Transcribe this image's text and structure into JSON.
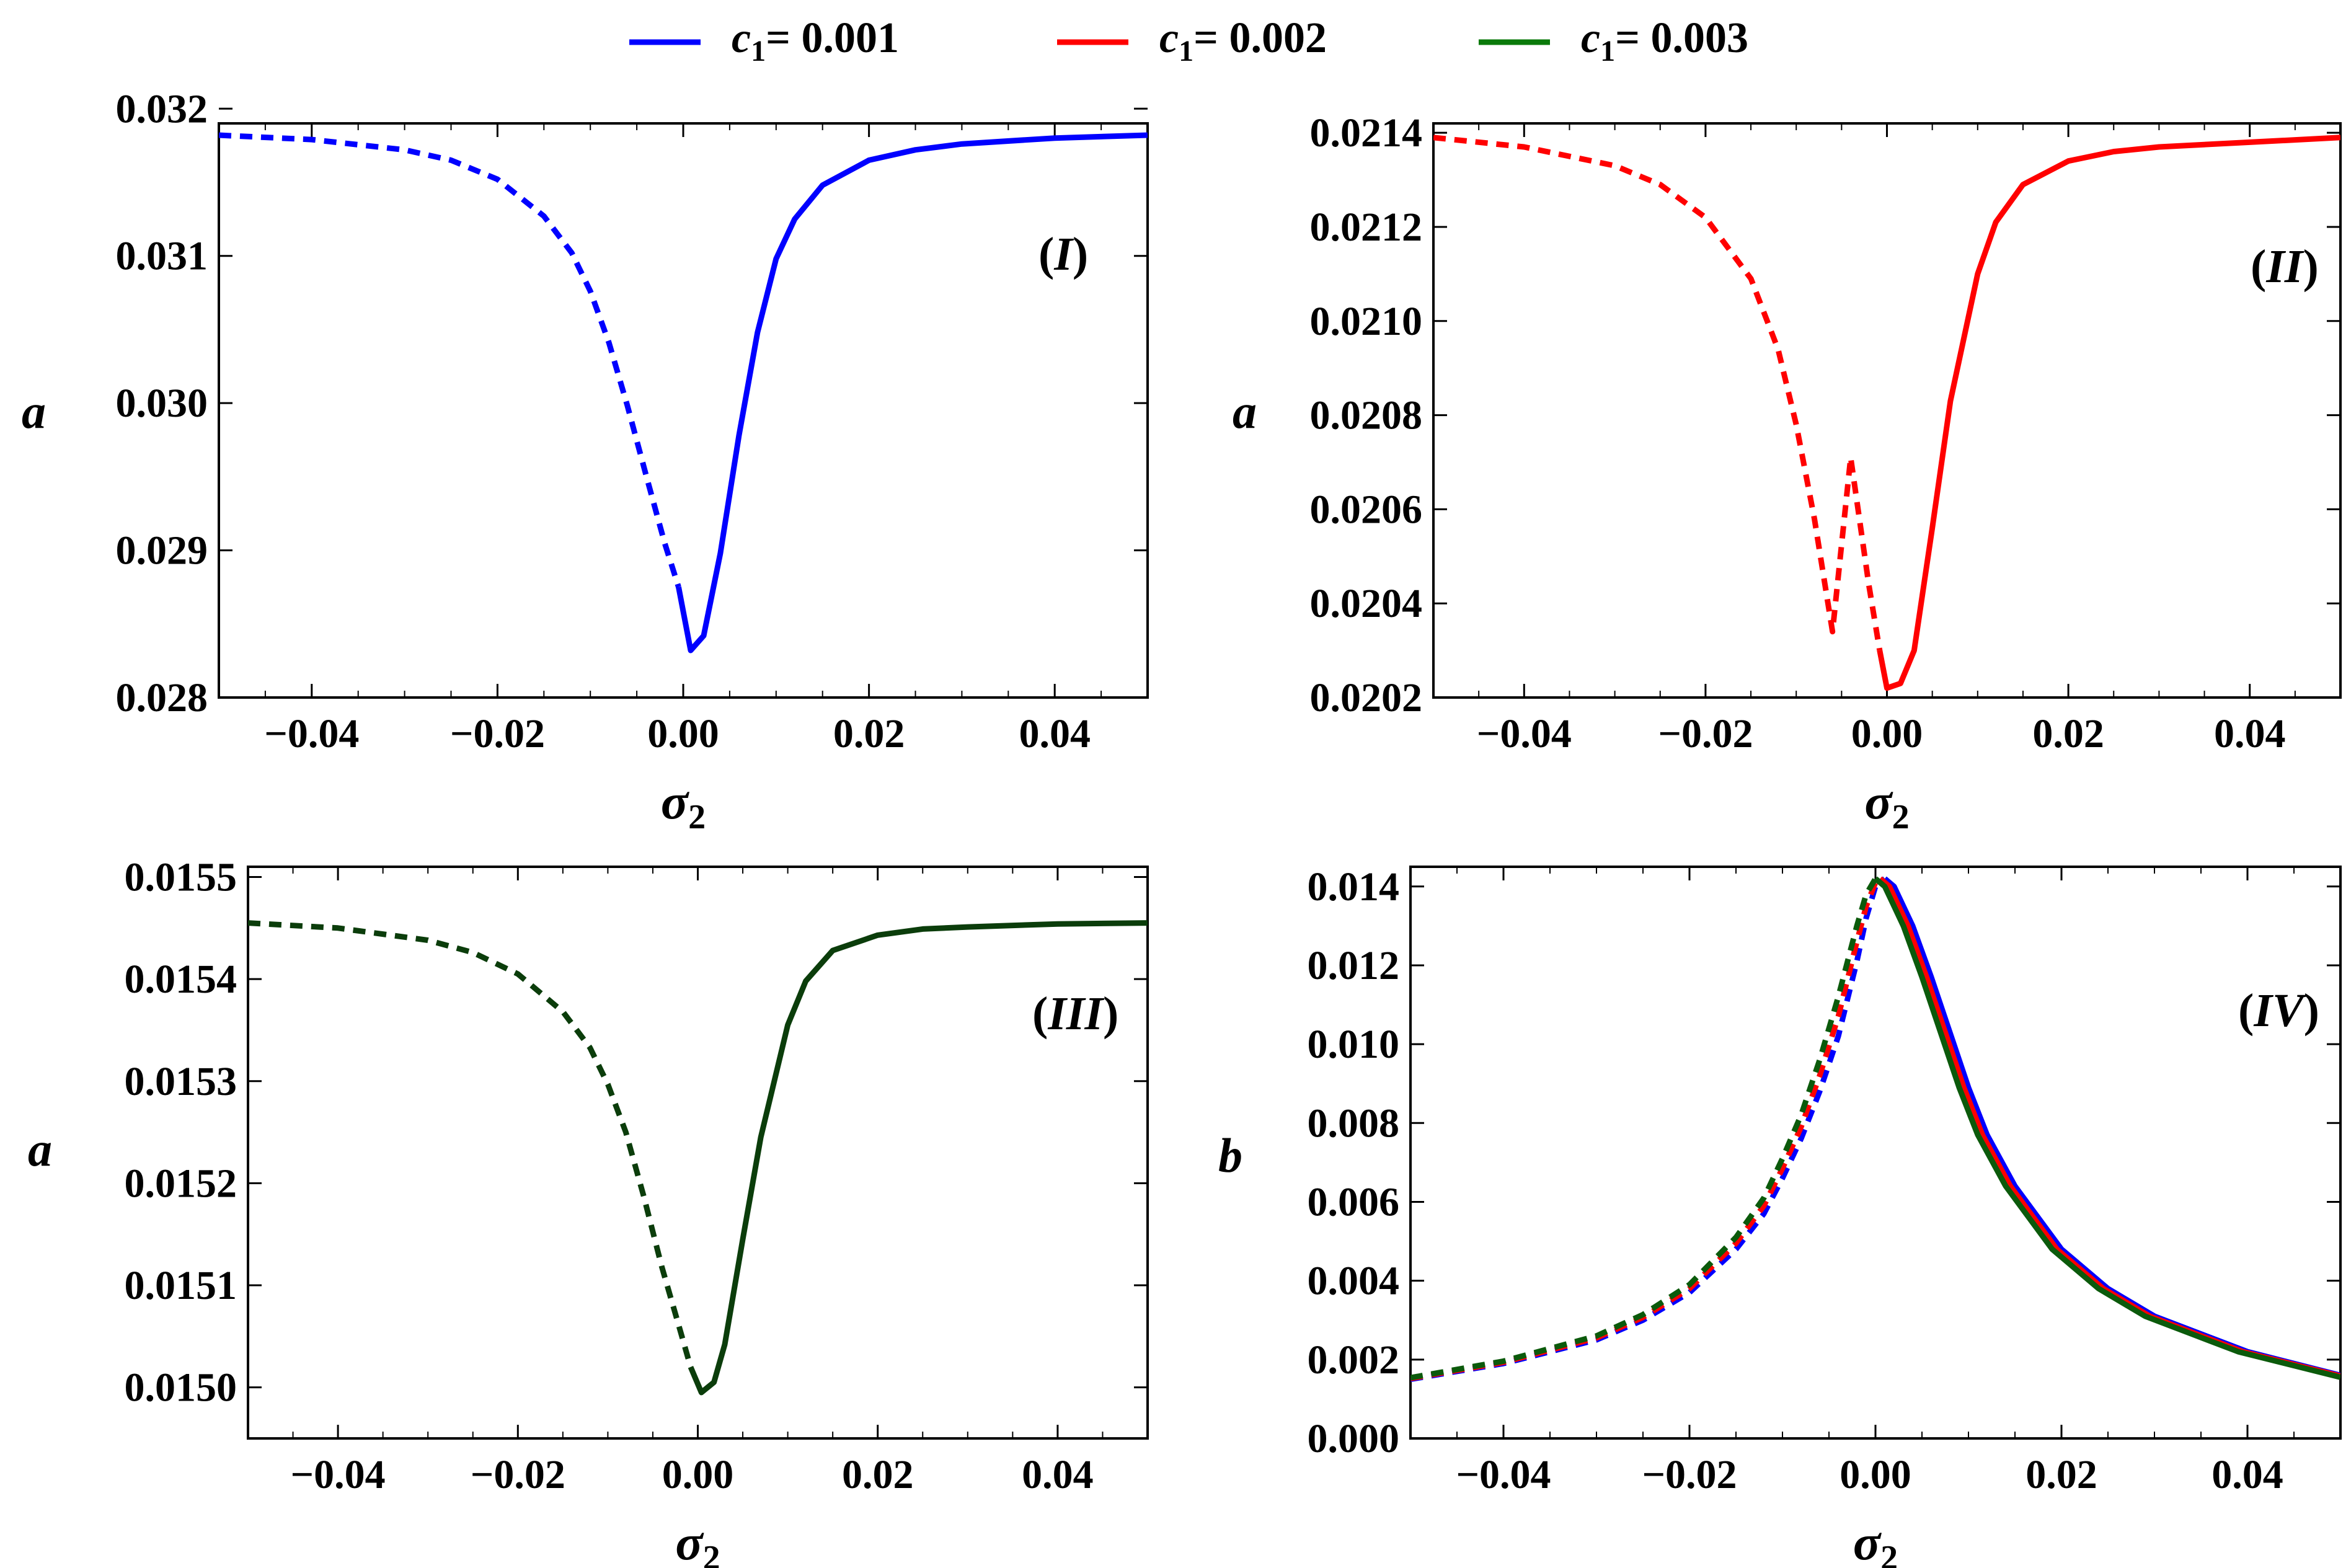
{
  "legend": [
    {
      "symbol": "c",
      "subscript": "1",
      "text": "= 0.001",
      "color": "#0000ff"
    },
    {
      "symbol": "c",
      "subscript": "1",
      "text": "= 0.002",
      "color": "#ff0000"
    },
    {
      "symbol": "c",
      "subscript": "1",
      "text": "= 0.003",
      "color": "#0a7a0a"
    }
  ],
  "chart_data": [
    {
      "type": "line",
      "panel_label": "I",
      "xlabel_symbol": "σ",
      "xlabel_subscript": "2",
      "ylabel": "a",
      "xlim": [
        -0.05,
        0.05
      ],
      "ylim": [
        0.028,
        0.0319
      ],
      "xticks": [
        -0.04,
        -0.02,
        0.0,
        0.02,
        0.04
      ],
      "xtick_labels": [
        "−0.04",
        "−0.02",
        "0.00",
        "0.02",
        "0.04"
      ],
      "yticks": [
        0.028,
        0.029,
        0.03,
        0.031,
        0.032
      ],
      "ytick_labels": [
        "0.028",
        "0.029",
        "0.030",
        "0.031",
        "0.032"
      ],
      "series": [
        {
          "name": "c1 = 0.001",
          "color": "#0000ff",
          "style": "dashed",
          "x": [
            -0.05,
            -0.04,
            -0.03,
            -0.025,
            -0.02,
            -0.015,
            -0.012,
            -0.01,
            -0.008,
            -0.006,
            -0.004,
            -0.002,
            -0.0005
          ],
          "y": [
            0.03182,
            0.03179,
            0.03172,
            0.03165,
            0.03152,
            0.03127,
            0.03102,
            0.03076,
            0.03041,
            0.02998,
            0.02951,
            0.02905,
            0.02875
          ]
        },
        {
          "name": "c1 = 0.001",
          "color": "#0000ff",
          "style": "solid",
          "x": [
            -0.0005,
            0.0008,
            0.0022,
            0.004,
            0.006,
            0.008,
            0.01,
            0.012,
            0.015,
            0.02,
            0.025,
            0.03,
            0.04,
            0.05
          ],
          "y": [
            0.02875,
            0.02832,
            0.02842,
            0.02898,
            0.02978,
            0.03048,
            0.03098,
            0.03125,
            0.03148,
            0.03165,
            0.03172,
            0.03176,
            0.0318,
            0.03182
          ]
        }
      ]
    },
    {
      "type": "line",
      "panel_label": "II",
      "xlabel_symbol": "σ",
      "xlabel_subscript": "2",
      "ylabel": "a",
      "xlim": [
        -0.05,
        0.05
      ],
      "ylim": [
        0.0202,
        0.02142
      ],
      "xticks": [
        -0.04,
        -0.02,
        0.0,
        0.02,
        0.04
      ],
      "xtick_labels": [
        "−0.04",
        "−0.02",
        "0.00",
        "0.02",
        "0.04"
      ],
      "yticks": [
        0.0202,
        0.0204,
        0.0206,
        0.0208,
        0.021,
        0.0212,
        0.0214
      ],
      "ytick_labels": [
        "0.0202",
        "0.0204",
        "0.0206",
        "0.0208",
        "0.0210",
        "0.0212",
        "0.0214"
      ],
      "series": [
        {
          "name": "c1 = 0.002",
          "color": "#ff0000",
          "style": "dashed",
          "x": [
            -0.05,
            -0.04,
            -0.03,
            -0.025,
            -0.02,
            -0.015,
            -0.012,
            -0.01,
            -0.008,
            -0.006,
            -0.004,
            -0.002,
            -0.0008
          ],
          "y": [
            0.02139,
            0.02137,
            0.02133,
            0.02129,
            0.02122,
            0.02109,
            0.02094,
            0.02078,
            0.02058,
            0.02034,
            0.02071,
            0.02044,
            0.0203
          ]
        },
        {
          "name": "c1 = 0.002",
          "color": "#ff0000",
          "style": "solid",
          "x": [
            -0.0008,
            0.0,
            0.0015,
            0.003,
            0.005,
            0.007,
            0.01,
            0.012,
            0.015,
            0.02,
            0.025,
            0.03,
            0.04,
            0.05
          ],
          "y": [
            0.0203,
            0.02022,
            0.02023,
            0.0203,
            0.02056,
            0.02083,
            0.0211,
            0.02121,
            0.02129,
            0.02134,
            0.02136,
            0.02137,
            0.02138,
            0.02139
          ]
        }
      ]
    },
    {
      "type": "line",
      "panel_label": "III",
      "xlabel_symbol": "σ",
      "xlabel_subscript": "2",
      "ylabel": "a",
      "xlim": [
        -0.05,
        0.05
      ],
      "ylim": [
        0.01495,
        0.01551
      ],
      "xticks": [
        -0.04,
        -0.02,
        0.0,
        0.02,
        0.04
      ],
      "xtick_labels": [
        "−0.04",
        "−0.02",
        "0.00",
        "0.02",
        "0.04"
      ],
      "yticks": [
        0.015,
        0.0151,
        0.0152,
        0.0153,
        0.0154,
        0.0155
      ],
      "ytick_labels": [
        "0.0150",
        "0.0151",
        "0.0152",
        "0.0153",
        "0.0154",
        "0.0155"
      ],
      "series": [
        {
          "name": "c1 = 0.003",
          "color": "#0b3d0b",
          "style": "dashed",
          "x": [
            -0.05,
            -0.04,
            -0.03,
            -0.025,
            -0.02,
            -0.015,
            -0.012,
            -0.01,
            -0.008,
            -0.006,
            -0.004,
            -0.002,
            -0.0008
          ],
          "y": [
            0.015455,
            0.01545,
            0.015438,
            0.015426,
            0.015405,
            0.015368,
            0.015333,
            0.015297,
            0.01525,
            0.015187,
            0.015118,
            0.015057,
            0.01502
          ]
        },
        {
          "name": "c1 = 0.003",
          "color": "#0b3d0b",
          "style": "solid",
          "x": [
            -0.0008,
            0.0004,
            0.0018,
            0.003,
            0.005,
            0.007,
            0.01,
            0.012,
            0.015,
            0.02,
            0.025,
            0.03,
            0.04,
            0.05
          ],
          "y": [
            0.01502,
            0.014995,
            0.015005,
            0.015042,
            0.015145,
            0.015245,
            0.015355,
            0.015398,
            0.015428,
            0.015443,
            0.015449,
            0.015451,
            0.015454,
            0.015455
          ]
        }
      ]
    },
    {
      "type": "line",
      "panel_label": "IV",
      "xlabel_symbol": "σ",
      "xlabel_subscript": "2",
      "ylabel": "b",
      "xlim": [
        -0.05,
        0.05
      ],
      "ylim": [
        0.0,
        0.0145
      ],
      "xticks": [
        -0.04,
        -0.02,
        0.0,
        0.02,
        0.04
      ],
      "xtick_labels": [
        "−0.04",
        "−0.02",
        "0.00",
        "0.02",
        "0.04"
      ],
      "yticks": [
        0.0,
        0.002,
        0.004,
        0.006,
        0.008,
        0.01,
        0.012,
        0.014
      ],
      "ytick_labels": [
        "0.000",
        "0.002",
        "0.004",
        "0.006",
        "0.008",
        "0.010",
        "0.012",
        "0.014"
      ],
      "series": [
        {
          "name": "c1 = 0.001",
          "color": "#0000ff",
          "style": "dashed",
          "x": [
            -0.05,
            -0.04,
            -0.03,
            -0.025,
            -0.02,
            -0.015,
            -0.012,
            -0.01,
            -0.008,
            -0.006,
            -0.004,
            -0.002,
            -0.001,
            0.0,
            0.001
          ],
          "y": [
            0.0015,
            0.0019,
            0.0025,
            0.003,
            0.0037,
            0.0048,
            0.0057,
            0.0066,
            0.0076,
            0.0088,
            0.0102,
            0.0121,
            0.0132,
            0.014,
            0.0142
          ]
        },
        {
          "name": "c1 = 0.001",
          "color": "#0000ff",
          "style": "solid",
          "x": [
            0.001,
            0.002,
            0.004,
            0.006,
            0.008,
            0.01,
            0.012,
            0.015,
            0.02,
            0.025,
            0.03,
            0.04,
            0.05
          ],
          "y": [
            0.0142,
            0.014,
            0.013,
            0.0117,
            0.0103,
            0.0089,
            0.0077,
            0.0064,
            0.0048,
            0.0038,
            0.0031,
            0.0022,
            0.0016
          ]
        },
        {
          "name": "c1 = 0.002",
          "color": "#ff0000",
          "style": "dashed",
          "x": [
            -0.05,
            -0.04,
            -0.03,
            -0.025,
            -0.02,
            -0.015,
            -0.012,
            -0.01,
            -0.008,
            -0.006,
            -0.004,
            -0.002,
            -0.001,
            0.0,
            0.0005
          ],
          "y": [
            0.00152,
            0.00193,
            0.00255,
            0.00307,
            0.0038,
            0.00495,
            0.0059,
            0.00685,
            0.0079,
            0.0092,
            0.0107,
            0.0126,
            0.0135,
            0.0141,
            0.0142
          ]
        },
        {
          "name": "c1 = 0.002",
          "color": "#ff0000",
          "style": "solid",
          "x": [
            0.0005,
            0.0015,
            0.0035,
            0.0055,
            0.0075,
            0.0095,
            0.0115,
            0.0145,
            0.0195,
            0.0245,
            0.0295,
            0.0395,
            0.05
          ],
          "y": [
            0.0142,
            0.014,
            0.013,
            0.0117,
            0.0103,
            0.0089,
            0.0077,
            0.0064,
            0.0048,
            0.0038,
            0.0031,
            0.0022,
            0.00158
          ]
        },
        {
          "name": "c1 = 0.003",
          "color": "#0b5a0b",
          "style": "dashed",
          "x": [
            -0.05,
            -0.04,
            -0.03,
            -0.025,
            -0.02,
            -0.015,
            -0.012,
            -0.01,
            -0.008,
            -0.006,
            -0.004,
            -0.002,
            -0.001,
            0.0
          ],
          "y": [
            0.00154,
            0.00196,
            0.0026,
            0.00314,
            0.0039,
            0.0051,
            0.0061,
            0.0071,
            0.0082,
            0.0096,
            0.0112,
            0.013,
            0.0138,
            0.0142
          ]
        },
        {
          "name": "c1 = 0.003",
          "color": "#0b5a0b",
          "style": "solid",
          "x": [
            0.0,
            0.001,
            0.003,
            0.005,
            0.007,
            0.009,
            0.011,
            0.014,
            0.019,
            0.024,
            0.029,
            0.039,
            0.05
          ],
          "y": [
            0.0142,
            0.014,
            0.013,
            0.0117,
            0.0103,
            0.0089,
            0.0077,
            0.0064,
            0.0048,
            0.0038,
            0.0031,
            0.0022,
            0.00155
          ]
        }
      ]
    }
  ]
}
